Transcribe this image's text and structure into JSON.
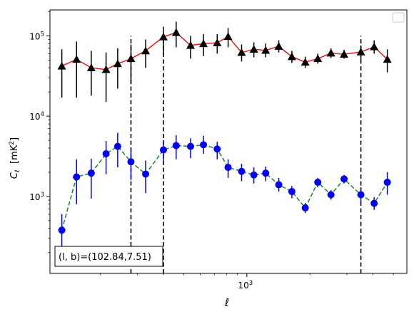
{
  "chart_data": {
    "type": "scatter",
    "xscale": "log",
    "yscale": "log",
    "xlim": [
      115,
      5800
    ],
    "ylim": [
      110,
      210000
    ],
    "xlabel": "ℓ",
    "ylabel_parts": [
      "C",
      "ℓ",
      "  [mK",
      "2",
      "]"
    ],
    "xticks": [
      {
        "value": 1000,
        "base": "10",
        "exp": "3"
      }
    ],
    "yticks": [
      {
        "value": 1000,
        "base": "10",
        "exp": "3"
      },
      {
        "value": 10000,
        "base": "10",
        "exp": "4"
      },
      {
        "value": 100000,
        "base": "10",
        "exp": "5"
      }
    ],
    "legend": "top-right",
    "legend_entries": [],
    "annotation": "(l, b)=(102.84,7.51)",
    "vlines": {
      "x": [
        280,
        400,
        3500
      ],
      "ymax": 100000,
      "color": "#000000",
      "style": "dashed"
    },
    "series": [
      {
        "marker": "triangle",
        "marker_color": "#000000",
        "line_color": "#e31a1c",
        "line_style": "solid",
        "errorbar_color": "#000000",
        "points": [
          {
            "x": 131,
            "y": 42000,
            "lo": 17000,
            "hi": 68000
          },
          {
            "x": 154,
            "y": 51000,
            "lo": 17000,
            "hi": 85000
          },
          {
            "x": 181,
            "y": 40000,
            "lo": 18000,
            "hi": 65000
          },
          {
            "x": 213,
            "y": 38000,
            "lo": 15000,
            "hi": 62000
          },
          {
            "x": 242,
            "y": 45000,
            "lo": 22000,
            "hi": 70000
          },
          {
            "x": 280,
            "y": 52000,
            "lo": 25000,
            "hi": 78000
          },
          {
            "x": 329,
            "y": 65000,
            "lo": 40000,
            "hi": 90000
          },
          {
            "x": 400,
            "y": 97000,
            "lo": 58000,
            "hi": 130000
          },
          {
            "x": 460,
            "y": 110000,
            "lo": 72000,
            "hi": 150000
          },
          {
            "x": 539,
            "y": 76000,
            "lo": 52000,
            "hi": 100000
          },
          {
            "x": 621,
            "y": 80000,
            "lo": 56000,
            "hi": 105000
          },
          {
            "x": 722,
            "y": 82000,
            "lo": 60000,
            "hi": 105000
          },
          {
            "x": 814,
            "y": 98000,
            "lo": 72000,
            "hi": 125000
          },
          {
            "x": 944,
            "y": 62000,
            "lo": 48000,
            "hi": 78000
          },
          {
            "x": 1080,
            "y": 68000,
            "lo": 54000,
            "hi": 83000
          },
          {
            "x": 1230,
            "y": 66000,
            "lo": 54000,
            "hi": 80000
          },
          {
            "x": 1420,
            "y": 74000,
            "lo": 62000,
            "hi": 88000
          },
          {
            "x": 1640,
            "y": 55000,
            "lo": 46000,
            "hi": 65000
          },
          {
            "x": 1900,
            "y": 47000,
            "lo": 40000,
            "hi": 55000
          },
          {
            "x": 2180,
            "y": 52000,
            "lo": 45000,
            "hi": 60000
          },
          {
            "x": 2520,
            "y": 61000,
            "lo": 53000,
            "hi": 70000
          },
          {
            "x": 2910,
            "y": 59000,
            "lo": 52000,
            "hi": 67000
          },
          {
            "x": 3500,
            "y": 63000,
            "lo": 50000,
            "hi": 76000
          },
          {
            "x": 4050,
            "y": 73000,
            "lo": 60000,
            "hi": 88000
          },
          {
            "x": 4680,
            "y": 51000,
            "lo": 35000,
            "hi": 68000
          }
        ]
      },
      {
        "marker": "circle",
        "marker_color": "#0000ff",
        "line_color": "#1a8a1a",
        "line_style": "dashed",
        "errorbar_color": "#0000ff",
        "points": [
          {
            "x": 131,
            "y": 380,
            "lo": 220,
            "hi": 600
          },
          {
            "x": 154,
            "y": 1750,
            "lo": 800,
            "hi": 2900
          },
          {
            "x": 181,
            "y": 1950,
            "lo": 940,
            "hi": 2950
          },
          {
            "x": 213,
            "y": 3400,
            "lo": 1900,
            "hi": 4900
          },
          {
            "x": 242,
            "y": 4200,
            "lo": 2300,
            "hi": 6200
          },
          {
            "x": 280,
            "y": 2700,
            "lo": 1600,
            "hi": 3900
          },
          {
            "x": 329,
            "y": 1900,
            "lo": 1100,
            "hi": 2800
          },
          {
            "x": 400,
            "y": 3800,
            "lo": 2700,
            "hi": 5000
          },
          {
            "x": 460,
            "y": 4300,
            "lo": 2900,
            "hi": 5800
          },
          {
            "x": 539,
            "y": 4200,
            "lo": 3000,
            "hi": 5300
          },
          {
            "x": 621,
            "y": 4400,
            "lo": 3400,
            "hi": 5700
          },
          {
            "x": 722,
            "y": 3900,
            "lo": 2900,
            "hi": 4800
          },
          {
            "x": 814,
            "y": 2300,
            "lo": 1700,
            "hi": 2900
          },
          {
            "x": 944,
            "y": 2050,
            "lo": 1550,
            "hi": 2550
          },
          {
            "x": 1080,
            "y": 1850,
            "lo": 1450,
            "hi": 2300
          },
          {
            "x": 1230,
            "y": 1950,
            "lo": 1550,
            "hi": 2350
          },
          {
            "x": 1420,
            "y": 1400,
            "lo": 1150,
            "hi": 1700
          },
          {
            "x": 1640,
            "y": 1150,
            "lo": 950,
            "hi": 1350
          },
          {
            "x": 1900,
            "y": 720,
            "lo": 620,
            "hi": 830
          },
          {
            "x": 2180,
            "y": 1500,
            "lo": 1300,
            "hi": 1700
          },
          {
            "x": 2520,
            "y": 1050,
            "lo": 910,
            "hi": 1200
          },
          {
            "x": 2910,
            "y": 1650,
            "lo": 1450,
            "hi": 1850
          },
          {
            "x": 3500,
            "y": 1050,
            "lo": 820,
            "hi": 1300
          },
          {
            "x": 4050,
            "y": 820,
            "lo": 680,
            "hi": 980
          },
          {
            "x": 4680,
            "y": 1500,
            "lo": 1050,
            "hi": 2000
          }
        ]
      }
    ]
  }
}
